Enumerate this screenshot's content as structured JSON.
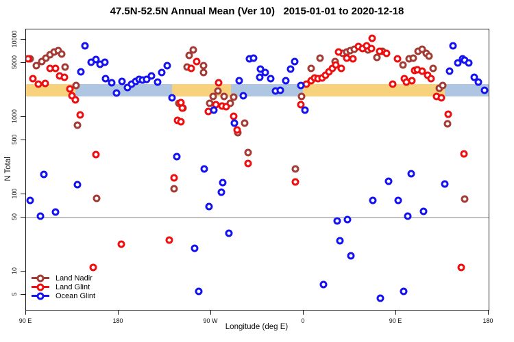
{
  "title": "47.5N-52.5N Annual Mean (Ver 10)   2015-01-01 to 2020-12-18",
  "chart_data": {
    "type": "scatter",
    "y_scale": "log",
    "x_axis": {
      "label": "Longitude (deg E)",
      "range_deg": [
        0,
        450
      ],
      "ticks": [
        {
          "label": "90 E",
          "deg": 0
        },
        {
          "label": "180",
          "deg": 90
        },
        {
          "label": "90 W",
          "deg": 180
        },
        {
          "label": "0",
          "deg": 270
        },
        {
          "label": "90 E",
          "deg": 360
        },
        {
          "label": "180",
          "deg": 450
        }
      ]
    },
    "y_axis": {
      "label": "N Total",
      "ticks": [
        10000,
        5000,
        1000,
        500,
        100,
        50,
        10,
        5
      ],
      "range": [
        3.2,
        13500
      ]
    },
    "reference_line": {
      "value": 50,
      "color": "#808080"
    },
    "mean_band": {
      "value": 2200,
      "land_color": "#F8D17C",
      "ocean_color": "#AEC6E1",
      "segments": [
        {
          "from": 0,
          "to": 48,
          "surface": "land"
        },
        {
          "from": 48,
          "to": 142,
          "surface": "ocean"
        },
        {
          "from": 142,
          "to": 199,
          "surface": "land"
        },
        {
          "from": 199,
          "to": 269,
          "surface": "ocean"
        },
        {
          "from": 269,
          "to": 407,
          "surface": "land"
        },
        {
          "from": 407,
          "to": 450,
          "surface": "ocean"
        }
      ]
    },
    "series": [
      {
        "name": "Land Nadir",
        "color": "#A33B35",
        "points": [
          [
            4,
            5650
          ],
          [
            10,
            4610
          ],
          [
            15.3,
            5210
          ],
          [
            19.3,
            5770
          ],
          [
            23.3,
            6380
          ],
          [
            27.3,
            6930
          ],
          [
            31.3,
            7210
          ],
          [
            34.7,
            6520
          ],
          [
            38,
            4430
          ],
          [
            48.7,
            2550
          ],
          [
            50,
            783
          ],
          [
            68.7,
            88
          ],
          [
            144,
            118
          ],
          [
            148.7,
            1500
          ],
          [
            152.7,
            1300
          ],
          [
            156.7,
            4430
          ],
          [
            158.7,
            6250
          ],
          [
            162.7,
            7360
          ],
          [
            172.7,
            4610
          ],
          [
            172.7,
            3760
          ],
          [
            178.7,
            1500
          ],
          [
            182,
            1840
          ],
          [
            186.7,
            2170
          ],
          [
            192.7,
            1840
          ],
          [
            198.7,
            1500
          ],
          [
            202,
            1810
          ],
          [
            206,
            625
          ],
          [
            212.7,
            832
          ],
          [
            216,
            347
          ],
          [
            262,
            212
          ],
          [
            268,
            1840
          ],
          [
            277.3,
            4250
          ],
          [
            286,
            5770
          ],
          [
            300.7,
            5210
          ],
          [
            308,
            6650
          ],
          [
            312,
            6930
          ],
          [
            315.3,
            7210
          ],
          [
            319.3,
            7520
          ],
          [
            332.7,
            7360
          ],
          [
            341.3,
            5890
          ],
          [
            346.7,
            7080
          ],
          [
            366.7,
            4710
          ],
          [
            372.7,
            5650
          ],
          [
            376.7,
            5770
          ],
          [
            381.3,
            7080
          ],
          [
            385.3,
            7520
          ],
          [
            389.3,
            6650
          ],
          [
            392,
            6140
          ],
          [
            396,
            4250
          ],
          [
            402,
            2360
          ],
          [
            405.3,
            2550
          ],
          [
            410,
            817
          ],
          [
            426.7,
            87
          ]
        ]
      },
      {
        "name": "Land Glint",
        "color": "#ED0E10",
        "points": [
          [
            2,
            5650
          ],
          [
            6.7,
            3130
          ],
          [
            12,
            2660
          ],
          [
            18.7,
            2720
          ],
          [
            23.3,
            4250
          ],
          [
            28.7,
            4250
          ],
          [
            32.7,
            3400
          ],
          [
            37.3,
            3260
          ],
          [
            42.7,
            2310
          ],
          [
            44.7,
            1880
          ],
          [
            48,
            1660
          ],
          [
            52.7,
            1060
          ],
          [
            65.3,
            11.3
          ],
          [
            68,
            326
          ],
          [
            92.7,
            22.6
          ],
          [
            139.3,
            25.5
          ],
          [
            144,
            163
          ],
          [
            147.3,
            904
          ],
          [
            150.7,
            1540
          ],
          [
            150.7,
            867
          ],
          [
            152,
            1300
          ],
          [
            160.7,
            4250
          ],
          [
            166,
            5210
          ],
          [
            177.3,
            1180
          ],
          [
            184.7,
            1440
          ],
          [
            187.3,
            2770
          ],
          [
            190.7,
            1390
          ],
          [
            194.7,
            1360
          ],
          [
            202,
            1020
          ],
          [
            205.3,
            679
          ],
          [
            216,
            250
          ],
          [
            262,
            144
          ],
          [
            267.3,
            1440
          ],
          [
            272.7,
            2660
          ],
          [
            277.3,
            2940
          ],
          [
            280.7,
            3190
          ],
          [
            284,
            3130
          ],
          [
            288,
            3190
          ],
          [
            291.3,
            3470
          ],
          [
            294.7,
            3840
          ],
          [
            298,
            4250
          ],
          [
            301.3,
            4710
          ],
          [
            304,
            6930
          ],
          [
            306.7,
            4250
          ],
          [
            312,
            5770
          ],
          [
            318,
            5650
          ],
          [
            323.3,
            8170
          ],
          [
            327.3,
            7670
          ],
          [
            331.3,
            8320
          ],
          [
            336,
            7670
          ],
          [
            336.7,
            10400
          ],
          [
            344,
            7080
          ],
          [
            350.7,
            6650
          ],
          [
            356.7,
            2660
          ],
          [
            361.3,
            5650
          ],
          [
            368,
            3130
          ],
          [
            370,
            2830
          ],
          [
            375.3,
            2940
          ],
          [
            378,
            4000
          ],
          [
            380.7,
            4080
          ],
          [
            385.3,
            3920
          ],
          [
            390.7,
            3470
          ],
          [
            394,
            3130
          ],
          [
            399.3,
            1840
          ],
          [
            404,
            1770
          ],
          [
            410.7,
            1080
          ],
          [
            423.3,
            11.3
          ],
          [
            426,
            333
          ]
        ]
      },
      {
        "name": "Ocean Glint",
        "color": "#1412EF",
        "points": [
          [
            4,
            83
          ],
          [
            14,
            52
          ],
          [
            17.3,
            181
          ],
          [
            28.7,
            59
          ],
          [
            50,
            133
          ],
          [
            53.3,
            3840
          ],
          [
            57.3,
            8320
          ],
          [
            63.3,
            5100
          ],
          [
            68,
            5530
          ],
          [
            72,
            4800
          ],
          [
            76.7,
            5100
          ],
          [
            77.3,
            3130
          ],
          [
            83.3,
            2770
          ],
          [
            88,
            2040
          ],
          [
            93.3,
            2880
          ],
          [
            98.7,
            2400
          ],
          [
            102.7,
            2660
          ],
          [
            106.7,
            2880
          ],
          [
            110,
            3070
          ],
          [
            113.3,
            3010
          ],
          [
            117.3,
            3070
          ],
          [
            122,
            3400
          ],
          [
            128,
            2830
          ],
          [
            132,
            3760
          ],
          [
            137.3,
            4610
          ],
          [
            142,
            1770
          ],
          [
            146.7,
            307
          ],
          [
            164,
            20
          ],
          [
            168,
            5.5
          ],
          [
            173.3,
            212
          ],
          [
            178,
            69
          ],
          [
            182.7,
            1220
          ],
          [
            190,
            106
          ],
          [
            191.3,
            141
          ],
          [
            197.3,
            31
          ],
          [
            202.7,
            832
          ],
          [
            207.3,
            2940
          ],
          [
            211.3,
            1880
          ],
          [
            217.3,
            5650
          ],
          [
            221.3,
            5770
          ],
          [
            227.3,
            3260
          ],
          [
            228,
            4170
          ],
          [
            232.7,
            3760
          ],
          [
            238,
            3130
          ],
          [
            242.7,
            2170
          ],
          [
            247.3,
            2210
          ],
          [
            252.7,
            2940
          ],
          [
            257.3,
            4170
          ],
          [
            261.3,
            5210
          ],
          [
            267.3,
            2550
          ],
          [
            271.3,
            1220
          ],
          [
            289.3,
            6.8
          ],
          [
            302.7,
            45
          ],
          [
            305.3,
            25
          ],
          [
            312.7,
            47
          ],
          [
            316,
            16
          ],
          [
            337.3,
            83
          ],
          [
            344.7,
            4.5
          ],
          [
            352.7,
            147
          ],
          [
            362,
            83
          ],
          [
            367.3,
            5.5
          ],
          [
            371.3,
            52
          ],
          [
            374.7,
            184
          ],
          [
            386.7,
            60
          ],
          [
            407.3,
            136
          ],
          [
            412,
            3920
          ],
          [
            415.3,
            8320
          ],
          [
            420,
            5000
          ],
          [
            424.7,
            5650
          ],
          [
            426.7,
            5400
          ],
          [
            430.7,
            5000
          ],
          [
            436,
            3260
          ],
          [
            440,
            2830
          ],
          [
            446,
            2210
          ]
        ]
      }
    ]
  }
}
